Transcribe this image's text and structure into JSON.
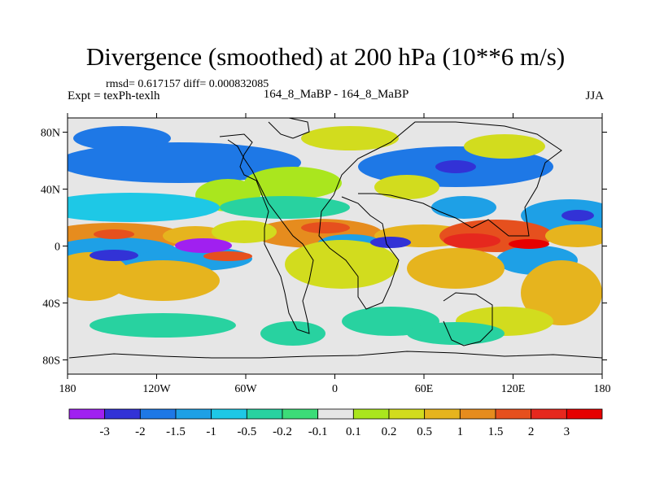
{
  "chart_data": {
    "type": "heatmap",
    "title": "Divergence (smoothed) at 200 hPa (10**6 m/s)",
    "stats": "rmsd= 0.617157  diff= 0.000832085",
    "left_label": "Expt = texPh-texlh",
    "center_label": "164_8_MaBP - 164_8_MaBP",
    "right_label": "JJA",
    "x_ticks": [
      "180",
      "120W",
      "60W",
      "0",
      "60E",
      "120E",
      "180"
    ],
    "y_ticks": [
      "80N",
      "40N",
      "0",
      "40S",
      "80S"
    ],
    "xlim": [
      -180,
      180
    ],
    "ylim": [
      -90,
      90
    ],
    "colorbar": {
      "labels": [
        "-3",
        "-2",
        "-1.5",
        "-1",
        "-0.5",
        "-0.2",
        "-0.1",
        "0.1",
        "0.2",
        "0.5",
        "1",
        "1.5",
        "2",
        "3"
      ],
      "colors": [
        "#a020f0",
        "#3232d6",
        "#1e78e6",
        "#1ea0e6",
        "#1ec8e6",
        "#28d2a0",
        "#3cdc78",
        "#e6e6e6",
        "#aae61e",
        "#d2dc1e",
        "#e6b41e",
        "#e68c1e",
        "#e6501e",
        "#e6281e",
        "#e60000"
      ]
    }
  }
}
